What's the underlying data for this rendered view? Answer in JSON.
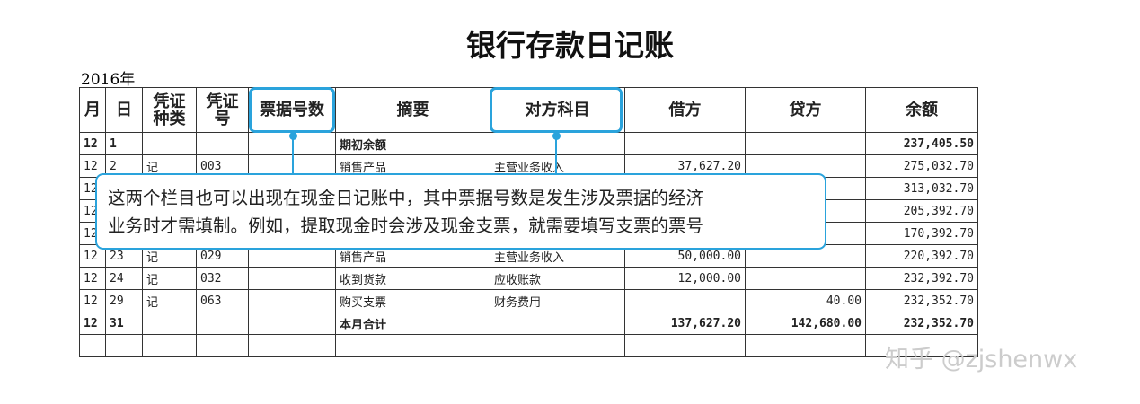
{
  "title": "银行存款日记账",
  "year": "2016年",
  "headers": [
    "月",
    "日",
    "凭证种类",
    "凭证号",
    "票据号数",
    "摘要",
    "对方科目",
    "借方",
    "贷方",
    "余额"
  ],
  "rows": [
    [
      "12",
      "1",
      "",
      "",
      "",
      "期初余额",
      "",
      "",
      "",
      "237,405.50"
    ],
    [
      "12",
      "2",
      "记",
      "003",
      "",
      "销售产品",
      "主营业务收入",
      "37,627.20",
      "",
      "275,032.70"
    ],
    [
      "12",
      "",
      "",
      "",
      "",
      "",
      "",
      "",
      "",
      "313,032.70"
    ],
    [
      "12",
      "",
      "",
      "",
      "",
      "",
      "",
      "",
      "",
      "205,392.70"
    ],
    [
      "12",
      "",
      "",
      "",
      "",
      "",
      "",
      "",
      "",
      "170,392.70"
    ],
    [
      "12",
      "23",
      "记",
      "029",
      "",
      "销售产品",
      "主营业务收入",
      "50,000.00",
      "",
      "220,392.70"
    ],
    [
      "12",
      "24",
      "记",
      "032",
      "",
      "收到货款",
      "应收账款",
      "12,000.00",
      "",
      "232,392.70"
    ],
    [
      "12",
      "29",
      "记",
      "063",
      "",
      "购买支票",
      "财务费用",
      "",
      "40.00",
      "232,352.70"
    ],
    [
      "12",
      "31",
      "",
      "",
      "",
      "本月合计",
      "",
      "137,627.20",
      "142,680.00",
      "232,352.70"
    ],
    [
      "",
      "",
      "",
      "",
      "",
      "",
      "",
      "",
      "",
      ""
    ]
  ],
  "callout": {
    "line1": "这两个栏目也可以出现在现金日记账中，其中票据号数是发生涉及票据的经济",
    "line2": "业务时才需填制。例如，提取现金时会涉及现金支票，就需要填写支票的票号"
  },
  "watermark": "知乎 @zjshenwx",
  "accent": "#2aa3dc"
}
